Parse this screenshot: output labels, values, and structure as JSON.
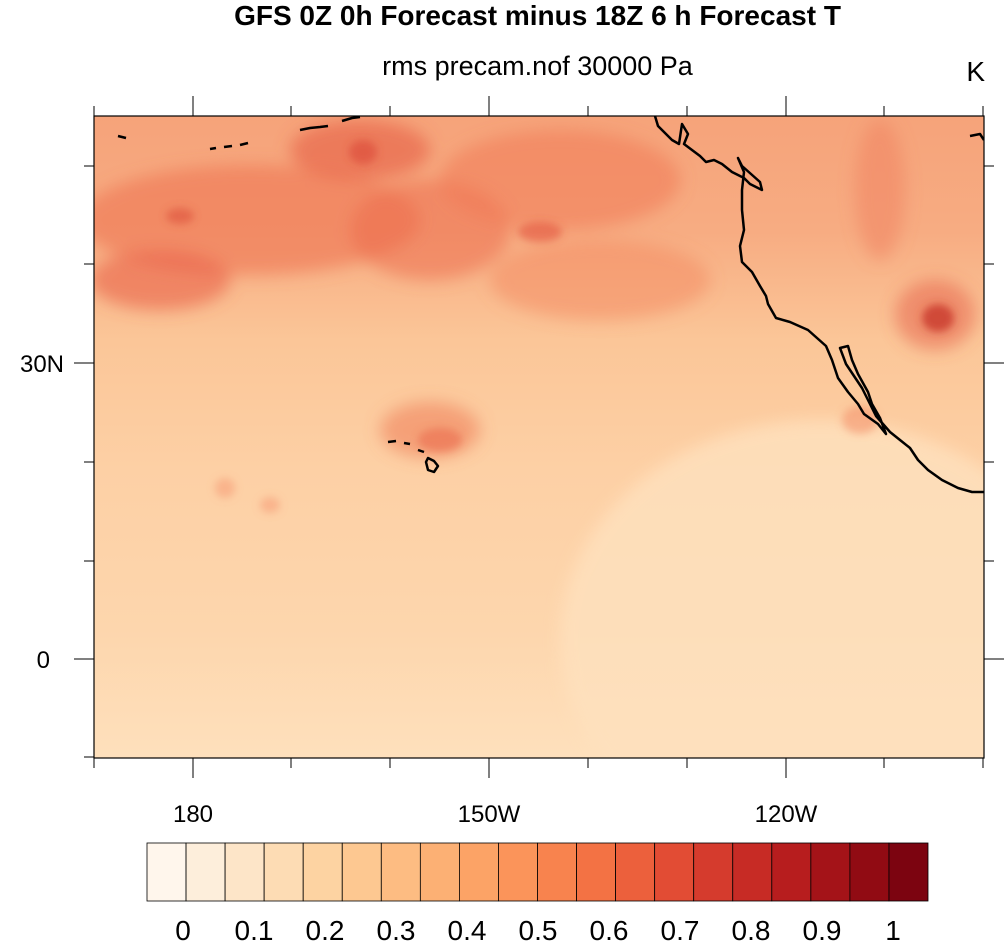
{
  "title": "GFS 0Z 0h Forecast minus 18Z 6 h Forecast T",
  "subtitle": "rms precam.nof 30000 Pa",
  "units": "K",
  "lat_labels": [
    "30N",
    "0"
  ],
  "lon_labels": [
    "180",
    "150W",
    "120W"
  ],
  "colorbar": {
    "tick_labels": [
      "0",
      "0.1",
      "0.2",
      "0.3",
      "0.4",
      "0.5",
      "0.6",
      "0.7",
      "0.8",
      "0.9",
      "1"
    ],
    "colors": [
      "#fff6ec",
      "#fdeedb",
      "#fde5c8",
      "#fddcb4",
      "#fdd3a2",
      "#fdc891",
      "#fdbc82",
      "#fcb074",
      "#fca366",
      "#fb945a",
      "#f8834e",
      "#f37244",
      "#ec603c",
      "#e24c34",
      "#d53b2d",
      "#c72b25",
      "#b71d1e",
      "#a41318",
      "#910b13",
      "#7c0410"
    ]
  },
  "icons": {
    "coastline": "coastline-icon"
  }
}
